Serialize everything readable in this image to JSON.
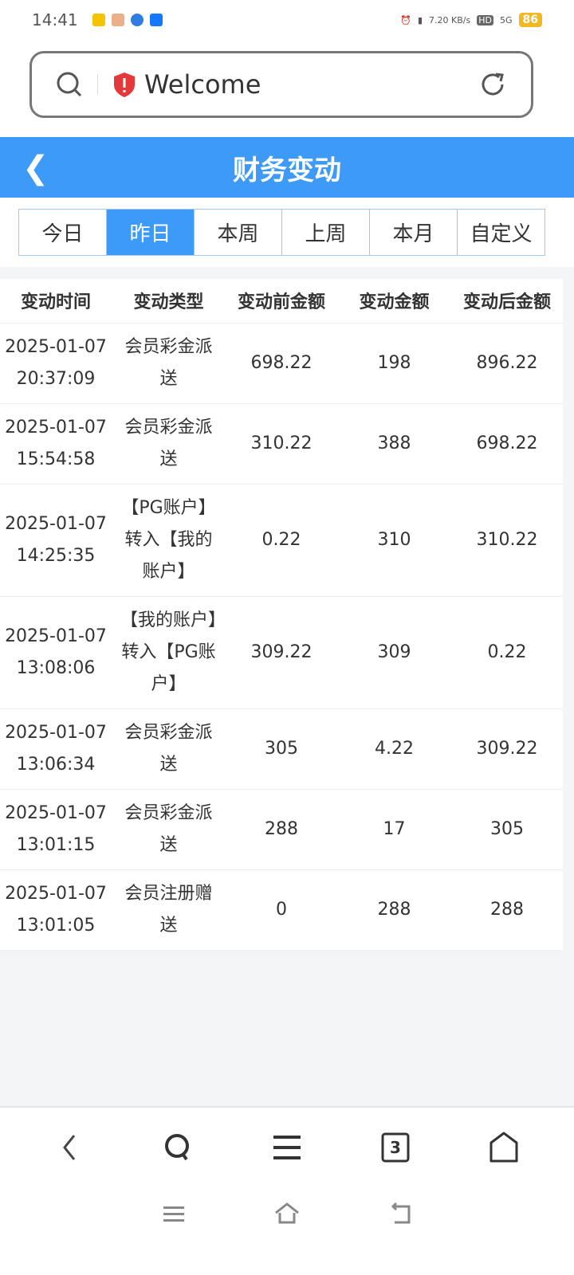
{
  "status": {
    "time": "14:41",
    "speed": "7.20 KB/s",
    "hd": "HD",
    "network": "5G",
    "battery": "86"
  },
  "browser": {
    "title": "Welcome",
    "tab_count": "3"
  },
  "header": {
    "title": "财务变动"
  },
  "tabs": [
    {
      "label": "今日"
    },
    {
      "label": "昨日",
      "active": true
    },
    {
      "label": "本周"
    },
    {
      "label": "上周"
    },
    {
      "label": "本月"
    },
    {
      "label": "自定义"
    }
  ],
  "table": {
    "headers": [
      "变动时间",
      "变动类型",
      "变动前金额",
      "变动金额",
      "变动后金额"
    ],
    "rows": [
      {
        "time": "2025-01-07 20:37:09",
        "type": "会员彩金派送",
        "before": "698.22",
        "amount": "198",
        "after": "896.22"
      },
      {
        "time": "2025-01-07 15:54:58",
        "type": "会员彩金派送",
        "before": "310.22",
        "amount": "388",
        "after": "698.22"
      },
      {
        "time": "2025-01-07 14:25:35",
        "type": "【PG账户】转入【我的账户】",
        "before": "0.22",
        "amount": "310",
        "after": "310.22"
      },
      {
        "time": "2025-01-07 13:08:06",
        "type": "【我的账户】转入【PG账户】",
        "before": "309.22",
        "amount": "309",
        "after": "0.22"
      },
      {
        "time": "2025-01-07 13:06:34",
        "type": "会员彩金派送",
        "before": "305",
        "amount": "4.22",
        "after": "309.22"
      },
      {
        "time": "2025-01-07 13:01:15",
        "type": "会员彩金派送",
        "before": "288",
        "amount": "17",
        "after": "305"
      },
      {
        "time": "2025-01-07 13:01:05",
        "type": "会员注册赠送",
        "before": "0",
        "amount": "288",
        "after": "288"
      }
    ]
  },
  "colors": {
    "accent": "#3d9af7"
  }
}
